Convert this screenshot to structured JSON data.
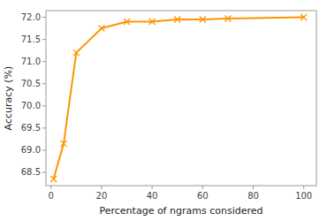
{
  "chart_data": {
    "type": "line",
    "x": [
      1,
      5,
      10,
      20,
      30,
      40,
      50,
      60,
      70,
      100
    ],
    "values": [
      68.35,
      69.15,
      71.2,
      71.75,
      71.9,
      71.9,
      71.95,
      71.95,
      71.97,
      72.0
    ],
    "color": "#ff9500",
    "marker": "x",
    "xlabel": "Percentage of ngrams considered",
    "ylabel": "Accuracy (%)",
    "xlim": [
      -2,
      105
    ],
    "ylim": [
      68.2,
      72.15
    ],
    "xticks": [
      0,
      20,
      40,
      60,
      80,
      100
    ],
    "yticks": [
      68.5,
      {
        "value": 69.0,
        "label": "69.0"
      },
      69.5,
      {
        "value": 70.0,
        "label": "70.0"
      },
      70.5,
      {
        "value": 71.0,
        "label": "71.0"
      },
      71.5,
      {
        "value": 72.0,
        "label": "72.0"
      }
    ],
    "grid": false
  }
}
